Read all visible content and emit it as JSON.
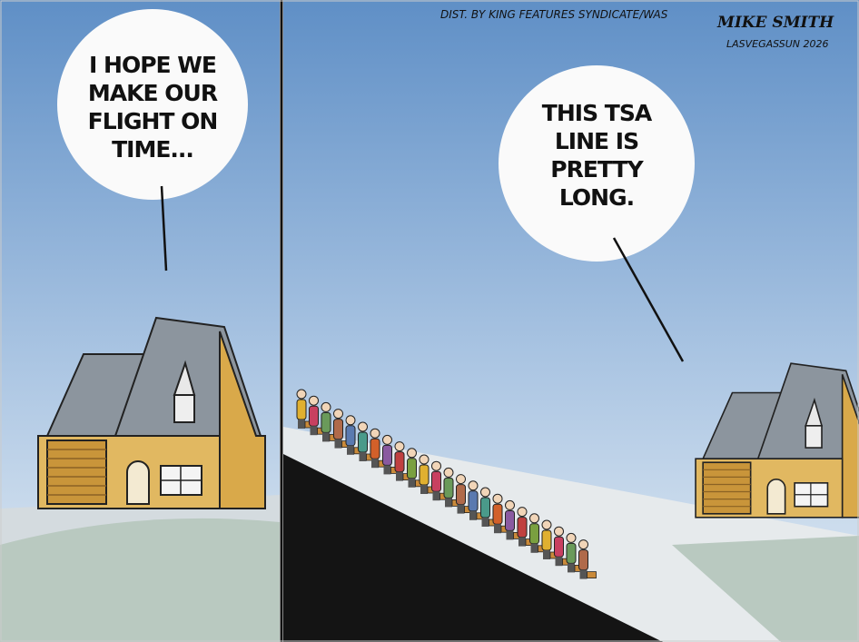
{
  "credit": "DIST. BY KING FEATURES SYNDICATE/WAS",
  "signature": {
    "name": "MIKE SMITH",
    "paper": "LASVEGASSUN 2026"
  },
  "panels": [
    {
      "bubble": [
        "I HOPE WE",
        "MAKE OUR",
        "FLIGHT ON",
        "TIME..."
      ]
    },
    {
      "bubble": [
        "THIS TSA",
        "LINE IS",
        "PRETTY",
        "LONG."
      ]
    }
  ]
}
